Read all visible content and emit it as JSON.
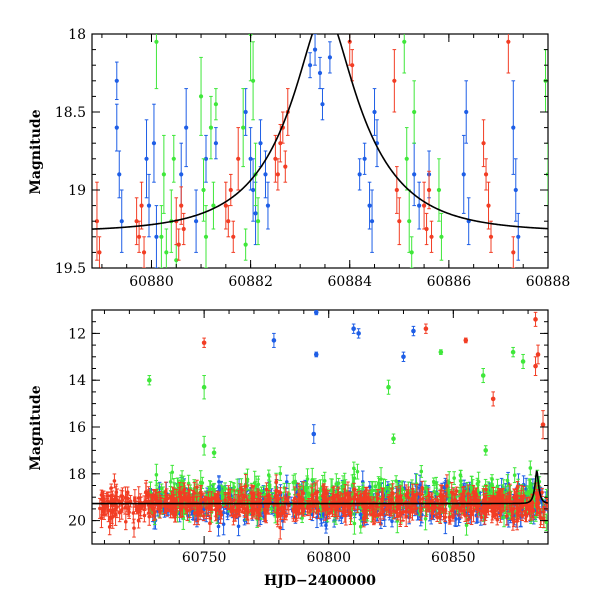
{
  "colors": {
    "blue": "#1e5ee6",
    "green": "#3fe73a",
    "red": "#f23d24",
    "model": "#000000"
  },
  "chart_data": [
    {
      "type": "scatter",
      "subtype": "light-curve-zoom",
      "xlabel": "",
      "ylabel": "Magnitude",
      "xlim": [
        60878.8,
        60888.0
      ],
      "ylim": [
        19.5,
        18.0
      ],
      "y_inverted": true,
      "xticks": [
        "60880",
        "60882",
        "60884",
        "60886",
        "60888"
      ],
      "yticks": [
        "18",
        "18.5",
        "19",
        "19.5"
      ],
      "model_curve": {
        "name": "",
        "params": {
          "t0": 60883.5,
          "u0": 0.28,
          "tE": 1.6,
          "base_mag": 19.27
        }
      },
      "series": [
        {
          "color": "blue",
          "points": [
            [
              60879.3,
              18.3,
              0.12
            ],
            [
              60879.3,
              18.6,
              0.15
            ],
            [
              60879.35,
              18.9,
              0.15
            ],
            [
              60879.4,
              19.2,
              0.2
            ],
            [
              60879.9,
              18.8,
              0.25
            ],
            [
              60879.95,
              19.1,
              0.2
            ],
            [
              60880.05,
              18.7,
              0.25
            ],
            [
              60880.1,
              19.3,
              0.2
            ],
            [
              60880.6,
              18.9,
              0.2
            ],
            [
              60880.7,
              18.6,
              0.25
            ],
            [
              60880.9,
              19.2,
              0.2
            ],
            [
              60881.1,
              18.8,
              0.15
            ],
            [
              60881.3,
              18.7,
              0.1
            ],
            [
              60881.9,
              18.5,
              0.15
            ],
            [
              60882.0,
              18.8,
              0.2
            ],
            [
              60882.05,
              19.0,
              0.2
            ],
            [
              60882.1,
              19.15,
              0.2
            ],
            [
              60882.2,
              18.7,
              0.15
            ],
            [
              60882.3,
              18.9,
              0.15
            ],
            [
              60882.35,
              19.1,
              0.15
            ],
            [
              60883.2,
              18.2,
              0.08
            ],
            [
              60883.3,
              18.1,
              0.1
            ],
            [
              60883.4,
              18.25,
              0.1
            ],
            [
              60883.45,
              18.45,
              0.1
            ],
            [
              60883.6,
              18.15,
              0.1
            ],
            [
              60884.2,
              18.9,
              0.1
            ],
            [
              60884.3,
              18.8,
              0.1
            ],
            [
              60884.4,
              19.1,
              0.15
            ],
            [
              60884.45,
              19.2,
              0.2
            ],
            [
              60884.5,
              18.5,
              0.15
            ],
            [
              60884.55,
              18.7,
              0.15
            ],
            [
              60885.3,
              18.9,
              0.2
            ],
            [
              60885.4,
              19.1,
              0.15
            ],
            [
              60885.6,
              18.9,
              0.15
            ],
            [
              60886.3,
              18.9,
              0.25
            ],
            [
              60886.35,
              18.5,
              0.2
            ],
            [
              60886.4,
              19.2,
              0.15
            ],
            [
              60887.3,
              18.6,
              0.3
            ],
            [
              60887.35,
              19.0,
              0.2
            ],
            [
              60887.4,
              19.3,
              0.15
            ]
          ]
        },
        {
          "color": "green",
          "points": [
            [
              60880.1,
              18.05,
              0.3
            ],
            [
              60880.2,
              19.3,
              0.2
            ],
            [
              60880.25,
              18.9,
              0.25
            ],
            [
              60880.3,
              19.4,
              0.15
            ],
            [
              60880.4,
              19.2,
              0.2
            ],
            [
              60880.45,
              18.8,
              0.15
            ],
            [
              60880.5,
              19.45,
              0.1
            ],
            [
              60881.0,
              18.4,
              0.25
            ],
            [
              60881.05,
              19.0,
              0.2
            ],
            [
              60881.1,
              19.3,
              0.2
            ],
            [
              60881.2,
              18.6,
              0.2
            ],
            [
              60881.25,
              19.1,
              0.15
            ],
            [
              60881.3,
              18.45,
              0.1
            ],
            [
              60881.85,
              18.6,
              0.25
            ],
            [
              60881.9,
              19.35,
              0.1
            ],
            [
              60882.0,
              18.0,
              0.3
            ],
            [
              60882.05,
              18.3,
              0.25
            ],
            [
              60882.1,
              18.9,
              0.2
            ],
            [
              60882.15,
              19.2,
              0.15
            ],
            [
              60885.1,
              18.05,
              0.2
            ],
            [
              60885.15,
              18.8,
              0.2
            ],
            [
              60885.2,
              19.2,
              0.2
            ],
            [
              60885.25,
              19.4,
              0.1
            ],
            [
              60885.3,
              18.5,
              0.2
            ],
            [
              60885.8,
              19.0,
              0.2
            ],
            [
              60885.85,
              19.3,
              0.15
            ],
            [
              60887.95,
              18.3,
              0.2
            ],
            [
              60888.0,
              18.9,
              0.2
            ]
          ]
        },
        {
          "color": "red",
          "points": [
            [
              60879.7,
              19.2,
              0.15
            ],
            [
              60879.75,
              19.3,
              0.1
            ],
            [
              60879.8,
              19.1,
              0.15
            ],
            [
              60879.85,
              19.4,
              0.1
            ],
            [
              60880.5,
              19.2,
              0.15
            ],
            [
              60880.55,
              19.35,
              0.1
            ],
            [
              60880.6,
              19.1,
              0.12
            ],
            [
              60880.65,
              19.25,
              0.1
            ],
            [
              60881.5,
              19.1,
              0.15
            ],
            [
              60881.55,
              19.2,
              0.1
            ],
            [
              60881.6,
              19.0,
              0.1
            ],
            [
              60881.65,
              19.3,
              0.1
            ],
            [
              60881.75,
              18.8,
              0.2
            ],
            [
              60882.5,
              18.8,
              0.15
            ],
            [
              60882.55,
              18.9,
              0.1
            ],
            [
              60882.6,
              18.7,
              0.12
            ],
            [
              60882.65,
              18.6,
              0.1
            ],
            [
              60882.7,
              18.85,
              0.1
            ],
            [
              60882.75,
              18.5,
              0.15
            ],
            [
              60884.0,
              18.05,
              0.15
            ],
            [
              60884.05,
              18.2,
              0.1
            ],
            [
              60884.9,
              18.3,
              0.2
            ],
            [
              60884.95,
              19.0,
              0.15
            ],
            [
              60885.0,
              19.2,
              0.15
            ],
            [
              60885.5,
              19.1,
              0.15
            ],
            [
              60885.55,
              19.25,
              0.1
            ],
            [
              60885.6,
              19.0,
              0.12
            ],
            [
              60885.65,
              19.3,
              0.1
            ],
            [
              60886.7,
              18.7,
              0.15
            ],
            [
              60886.75,
              18.9,
              0.1
            ],
            [
              60886.8,
              19.1,
              0.15
            ],
            [
              60886.85,
              19.3,
              0.1
            ],
            [
              60887.2,
              18.05,
              0.2
            ],
            [
              60887.3,
              19.4,
              0.1
            ],
            [
              60878.9,
              19.2,
              0.25
            ],
            [
              60878.95,
              19.4,
              0.1
            ]
          ]
        }
      ]
    },
    {
      "type": "scatter",
      "subtype": "light-curve-full",
      "xlabel": "HJD−2400000",
      "ylabel": "Magnitude",
      "xlim": [
        60705,
        60888
      ],
      "ylim": [
        21.0,
        11.0
      ],
      "y_inverted": true,
      "xticks": [
        "60750",
        "60800",
        "60850"
      ],
      "yticks": [
        "12",
        "14",
        "16",
        "18",
        "20"
      ],
      "model_curve": {
        "name": "",
        "params": {
          "t0": 60883.5,
          "u0": 0.28,
          "tE": 1.6,
          "base_mag": 19.27
        }
      },
      "dense_band": {
        "blue": {
          "x_range": [
            60728,
            60888
          ],
          "center": 19.25,
          "spread": 0.75
        },
        "green": {
          "x_range": [
            60728,
            60888
          ],
          "center": 19.0,
          "spread": 0.9
        },
        "red": {
          "x_range": [
            60708,
            60888
          ],
          "center": 19.3,
          "spread": 0.6
        }
      },
      "outliers": [
        {
          "color": "red",
          "x": 60750,
          "y": 12.4,
          "err": 0.2
        },
        {
          "color": "red",
          "x": 60839,
          "y": 11.8,
          "err": 0.2
        },
        {
          "color": "red",
          "x": 60855,
          "y": 12.3,
          "err": 0.1
        },
        {
          "color": "red",
          "x": 60866,
          "y": 14.8,
          "err": 0.3
        },
        {
          "color": "red",
          "x": 60883,
          "y": 11.4,
          "err": 0.3
        },
        {
          "color": "red",
          "x": 60884,
          "y": 12.9,
          "err": 0.4
        },
        {
          "color": "red",
          "x": 60883,
          "y": 13.4,
          "err": 0.4
        },
        {
          "color": "red",
          "x": 60886,
          "y": 15.9,
          "err": 0.6
        },
        {
          "color": "blue",
          "x": 60778,
          "y": 12.3,
          "err": 0.3
        },
        {
          "color": "blue",
          "x": 60795,
          "y": 11.1,
          "err": 0.1
        },
        {
          "color": "blue",
          "x": 60795,
          "y": 12.9,
          "err": 0.1
        },
        {
          "color": "blue",
          "x": 60810,
          "y": 11.8,
          "err": 0.2
        },
        {
          "color": "blue",
          "x": 60812,
          "y": 12.0,
          "err": 0.2
        },
        {
          "color": "blue",
          "x": 60830,
          "y": 13.0,
          "err": 0.2
        },
        {
          "color": "blue",
          "x": 60834,
          "y": 11.9,
          "err": 0.2
        },
        {
          "color": "blue",
          "x": 60794,
          "y": 16.3,
          "err": 0.4
        },
        {
          "color": "green",
          "x": 60728,
          "y": 14.0,
          "err": 0.2
        },
        {
          "color": "green",
          "x": 60750,
          "y": 14.3,
          "err": 0.5
        },
        {
          "color": "green",
          "x": 60824,
          "y": 14.3,
          "err": 0.3
        },
        {
          "color": "green",
          "x": 60845,
          "y": 12.8,
          "err": 0.1
        },
        {
          "color": "green",
          "x": 60862,
          "y": 13.8,
          "err": 0.3
        },
        {
          "color": "green",
          "x": 60874,
          "y": 12.8,
          "err": 0.2
        },
        {
          "color": "green",
          "x": 60878,
          "y": 13.2,
          "err": 0.3
        },
        {
          "color": "green",
          "x": 60754,
          "y": 17.1,
          "err": 0.2
        },
        {
          "color": "green",
          "x": 60750,
          "y": 16.8,
          "err": 0.4
        },
        {
          "color": "green",
          "x": 60826,
          "y": 16.5,
          "err": 0.2
        },
        {
          "color": "green",
          "x": 60863,
          "y": 17.0,
          "err": 0.2
        }
      ]
    }
  ]
}
